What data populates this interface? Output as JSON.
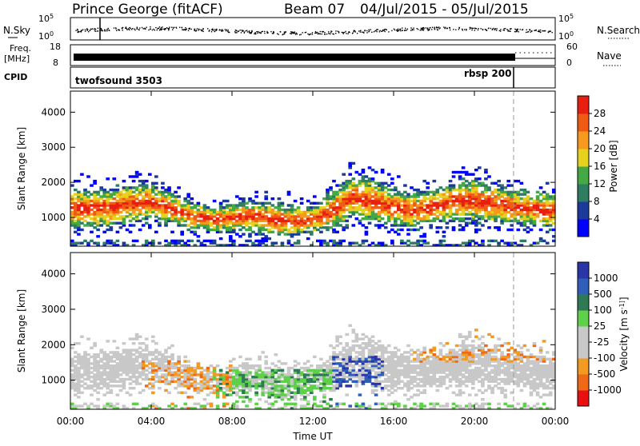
{
  "header": {
    "station": "Prince George (fitACF)",
    "beam": "Beam 07",
    "date_range": "04/Jul/2015 - 05/Jul/2015"
  },
  "top_strips": {
    "nsky": {
      "label": "N.Sky",
      "tick_top": "10^5",
      "tick_bottom": "10^0",
      "right_label": "N.Search",
      "right_tick_top": "10^5",
      "right_tick_bottom": "10^0"
    },
    "freq": {
      "label_line1": "Freq.",
      "label_line2": "[MHz]",
      "tick_top": "18",
      "tick_bottom": "8",
      "right_label": "Nave",
      "right_tick_top": "60",
      "right_tick_bottom": "0"
    },
    "cpid": {
      "label": "CPID",
      "program_1": "twofsound 3503",
      "program_2": "rbsp 200"
    }
  },
  "colors": {
    "power_scale": [
      "#0000ff",
      "#1c3a9a",
      "#2e7d63",
      "#44a845",
      "#e6d21e",
      "#f59a1c",
      "#ef5a14",
      "#e81e10"
    ],
    "velocity_scale": [
      "#2a36a8",
      "#2f5fb8",
      "#2f7a55",
      "#5ed04a",
      "#c8c8c8",
      "#c8c8c8",
      "#f29a22",
      "#ef6a18",
      "#e81010"
    ]
  },
  "chart_data": [
    {
      "type": "heatmap",
      "title": "",
      "xlabel": "",
      "ylabel": "Slant Range [km]",
      "x_ticks": [
        "00:00",
        "04:00",
        "08:00",
        "12:00",
        "16:00",
        "20:00",
        "00:00"
      ],
      "y_ticks": [
        "1000",
        "2000",
        "3000",
        "4000"
      ],
      "ylim": [
        180,
        4600
      ],
      "colorbar": {
        "label": "Power [dB]",
        "ticks": [
          "4",
          "8",
          "12",
          "16",
          "20",
          "24",
          "28"
        ],
        "range": [
          0,
          32
        ]
      },
      "profile": {
        "time_h": [
          0,
          1,
          2,
          3,
          4,
          5,
          6,
          7,
          8,
          9,
          10,
          11,
          12,
          13,
          14,
          15,
          16,
          17,
          18,
          19,
          20,
          21,
          22,
          23,
          24
        ],
        "core_km": [
          1300,
          1250,
          1300,
          1400,
          1450,
          1250,
          1050,
          950,
          1000,
          1050,
          950,
          900,
          950,
          1200,
          1600,
          1450,
          1300,
          1200,
          1300,
          1450,
          1500,
          1400,
          1300,
          1250,
          1200
        ],
        "half_width_km": [
          550,
          500,
          500,
          500,
          450,
          400,
          350,
          300,
          350,
          400,
          450,
          400,
          350,
          500,
          550,
          550,
          500,
          450,
          450,
          500,
          550,
          500,
          450,
          450,
          450
        ]
      },
      "annotations": [
        "rbsp 200"
      ]
    },
    {
      "type": "heatmap",
      "title": "",
      "xlabel": "Time UT",
      "ylabel": "Slant Range [km]",
      "x_ticks": [
        "00:00",
        "04:00",
        "08:00",
        "12:00",
        "16:00",
        "20:00",
        "00:00"
      ],
      "y_ticks": [
        "1000",
        "2000",
        "3000",
        "4000"
      ],
      "ylim": [
        180,
        4600
      ],
      "colorbar": {
        "label": "Velocity [m s^-1]",
        "ticks": [
          "1000",
          "500",
          "100",
          "25",
          "-25",
          "-100",
          "-500",
          "-1000"
        ],
        "range": [
          -1000,
          1000
        ]
      }
    }
  ]
}
